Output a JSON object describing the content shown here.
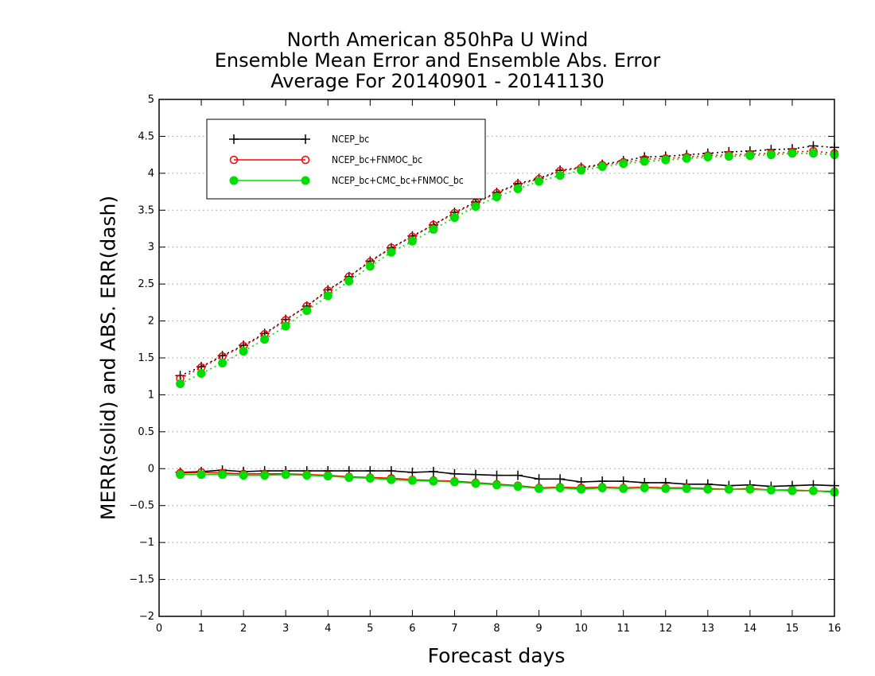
{
  "title_lines": [
    "North American 850hPa U Wind",
    "Ensemble Mean Error and Ensemble Abs. Error",
    "Average For 20140901 - 20141130"
  ],
  "chart_data": {
    "type": "line",
    "xlabel": "Forecast days",
    "ylabel": "MERR(solid) and ABS. ERR(dash)",
    "xlim": [
      0,
      16
    ],
    "ylim": [
      -2,
      5
    ],
    "x_ticks": [
      "0",
      "1",
      "2",
      "3",
      "4",
      "5",
      "6",
      "7",
      "8",
      "9",
      "10",
      "11",
      "12",
      "13",
      "14",
      "15",
      "16"
    ],
    "y_ticks": [
      "−2",
      "−1.5",
      "−1",
      "−0.5",
      "0",
      "0.5",
      "1",
      "1.5",
      "2",
      "2.5",
      "3",
      "3.5",
      "4",
      "4.5",
      "5"
    ],
    "grid": "horizontal dotted",
    "legend_position": "top-left",
    "x": [
      0.5,
      1,
      1.5,
      2,
      2.5,
      3,
      3.5,
      4,
      4.5,
      5,
      5.5,
      6,
      6.5,
      7,
      7.5,
      8,
      8.5,
      9,
      9.5,
      10,
      10.5,
      11,
      11.5,
      12,
      12.5,
      13,
      13.5,
      14,
      14.5,
      15,
      15.5,
      16
    ],
    "series": [
      {
        "name": "NCEP_bc",
        "color": "#000000",
        "marker": "plus",
        "abs_err": [
          1.26,
          1.38,
          1.53,
          1.67,
          1.83,
          2.02,
          2.2,
          2.42,
          2.6,
          2.81,
          2.99,
          3.15,
          3.3,
          3.47,
          3.61,
          3.74,
          3.86,
          3.93,
          4.04,
          4.08,
          4.12,
          4.17,
          4.22,
          4.23,
          4.25,
          4.27,
          4.29,
          4.3,
          4.32,
          4.33,
          4.37,
          4.35
        ],
        "mean_err": [
          -0.05,
          -0.04,
          -0.02,
          -0.04,
          -0.03,
          -0.03,
          -0.03,
          -0.03,
          -0.03,
          -0.03,
          -0.03,
          -0.05,
          -0.04,
          -0.07,
          -0.08,
          -0.09,
          -0.09,
          -0.14,
          -0.14,
          -0.18,
          -0.17,
          -0.17,
          -0.19,
          -0.19,
          -0.21,
          -0.21,
          -0.23,
          -0.22,
          -0.24,
          -0.23,
          -0.22,
          -0.23
        ]
      },
      {
        "name": "NCEP_bc+FNMOC_bc",
        "color": "#ff0000",
        "marker": "open-circle",
        "abs_err": [
          1.22,
          1.37,
          1.52,
          1.66,
          1.82,
          2.01,
          2.2,
          2.41,
          2.6,
          2.8,
          2.99,
          3.14,
          3.3,
          3.46,
          3.6,
          3.73,
          3.85,
          3.92,
          4.03,
          4.07,
          4.11,
          4.15,
          4.19,
          4.2,
          4.22,
          4.24,
          4.25,
          4.26,
          4.27,
          4.29,
          4.3,
          4.27
        ],
        "mean_err": [
          -0.06,
          -0.05,
          -0.06,
          -0.07,
          -0.07,
          -0.07,
          -0.08,
          -0.09,
          -0.11,
          -0.12,
          -0.13,
          -0.15,
          -0.16,
          -0.17,
          -0.19,
          -0.21,
          -0.23,
          -0.26,
          -0.25,
          -0.26,
          -0.25,
          -0.26,
          -0.25,
          -0.26,
          -0.26,
          -0.27,
          -0.28,
          -0.27,
          -0.29,
          -0.29,
          -0.3,
          -0.31
        ]
      },
      {
        "name": "NCEP_bc+CMC_bc+FNMOC_bc",
        "color": "#00dd00",
        "marker": "filled-circle",
        "abs_err": [
          1.15,
          1.29,
          1.43,
          1.59,
          1.75,
          1.93,
          2.14,
          2.34,
          2.54,
          2.74,
          2.93,
          3.08,
          3.24,
          3.4,
          3.55,
          3.68,
          3.79,
          3.89,
          3.97,
          4.04,
          4.09,
          4.13,
          4.16,
          4.18,
          4.2,
          4.22,
          4.23,
          4.24,
          4.25,
          4.27,
          4.27,
          4.25
        ],
        "mean_err": [
          -0.08,
          -0.08,
          -0.08,
          -0.09,
          -0.09,
          -0.08,
          -0.09,
          -0.1,
          -0.12,
          -0.13,
          -0.15,
          -0.16,
          -0.17,
          -0.18,
          -0.2,
          -0.22,
          -0.24,
          -0.27,
          -0.26,
          -0.28,
          -0.26,
          -0.27,
          -0.26,
          -0.27,
          -0.27,
          -0.28,
          -0.28,
          -0.28,
          -0.29,
          -0.3,
          -0.3,
          -0.32
        ]
      }
    ]
  }
}
